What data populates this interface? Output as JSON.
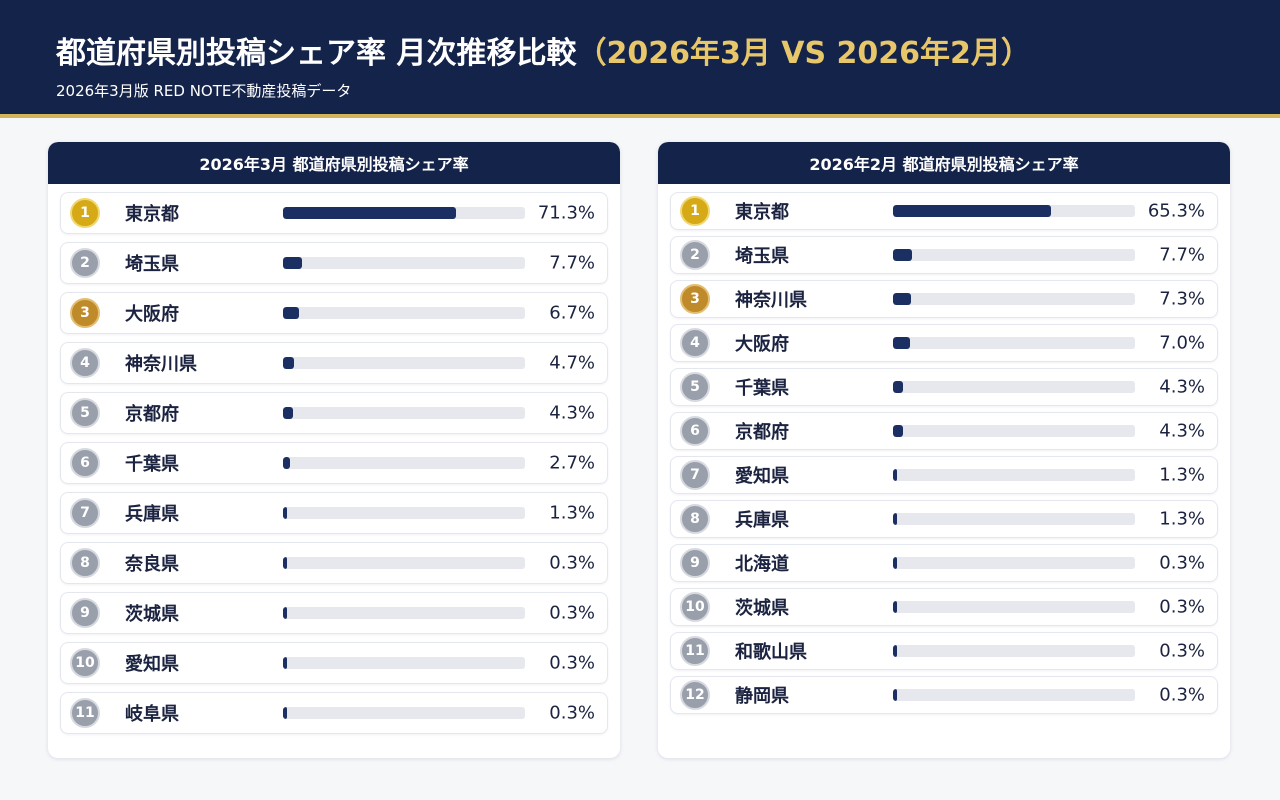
{
  "header": {
    "title_main": "都道府県別投稿シェア率 月次推移比較",
    "title_accent": "（2026年3月 VS 2026年2月）",
    "subtitle": "2026年3月版 RED NOTE不動産投稿データ"
  },
  "colors": {
    "header_bg": "#14234a",
    "accent_gold": "#d3b45a",
    "bar_fill": "#1c2f63",
    "bar_track": "#e6e8ee",
    "rank_gold": "#d6a916",
    "rank_silver": "#9aa0ab",
    "rank_bronze": "#bf8a2a"
  },
  "chart_data": [
    {
      "type": "bar",
      "title": "2026年3月 都道府県別投稿シェア率",
      "unit": "%",
      "xlim": [
        0,
        100
      ],
      "rows": [
        {
          "rank": "1",
          "medal": "gold",
          "name": "東京都",
          "value": 71.3,
          "label": "71.3%"
        },
        {
          "rank": "2",
          "medal": "silver",
          "name": "埼玉県",
          "value": 7.7,
          "label": "7.7%"
        },
        {
          "rank": "3",
          "medal": "bronze",
          "name": "大阪府",
          "value": 6.7,
          "label": "6.7%"
        },
        {
          "rank": "4",
          "medal": "none",
          "name": "神奈川県",
          "value": 4.7,
          "label": "4.7%"
        },
        {
          "rank": "5",
          "medal": "none",
          "name": "京都府",
          "value": 4.3,
          "label": "4.3%"
        },
        {
          "rank": "6",
          "medal": "none",
          "name": "千葉県",
          "value": 2.7,
          "label": "2.7%"
        },
        {
          "rank": "7",
          "medal": "none",
          "name": "兵庫県",
          "value": 1.3,
          "label": "1.3%"
        },
        {
          "rank": "8",
          "medal": "none",
          "name": "奈良県",
          "value": 0.3,
          "label": "0.3%"
        },
        {
          "rank": "9",
          "medal": "none",
          "name": "茨城県",
          "value": 0.3,
          "label": "0.3%"
        },
        {
          "rank": "10",
          "medal": "none",
          "name": "愛知県",
          "value": 0.3,
          "label": "0.3%"
        },
        {
          "rank": "11",
          "medal": "none",
          "name": "岐阜県",
          "value": 0.3,
          "label": "0.3%"
        }
      ]
    },
    {
      "type": "bar",
      "title": "2026年2月 都道府県別投稿シェア率",
      "unit": "%",
      "xlim": [
        0,
        100
      ],
      "rows": [
        {
          "rank": "1",
          "medal": "gold",
          "name": "東京都",
          "value": 65.3,
          "label": "65.3%"
        },
        {
          "rank": "2",
          "medal": "silver",
          "name": "埼玉県",
          "value": 7.7,
          "label": "7.7%"
        },
        {
          "rank": "3",
          "medal": "bronze",
          "name": "神奈川県",
          "value": 7.3,
          "label": "7.3%"
        },
        {
          "rank": "4",
          "medal": "none",
          "name": "大阪府",
          "value": 7.0,
          "label": "7.0%"
        },
        {
          "rank": "5",
          "medal": "none",
          "name": "千葉県",
          "value": 4.3,
          "label": "4.3%"
        },
        {
          "rank": "6",
          "medal": "none",
          "name": "京都府",
          "value": 4.3,
          "label": "4.3%"
        },
        {
          "rank": "7",
          "medal": "none",
          "name": "愛知県",
          "value": 1.3,
          "label": "1.3%"
        },
        {
          "rank": "8",
          "medal": "none",
          "name": "兵庫県",
          "value": 1.3,
          "label": "1.3%"
        },
        {
          "rank": "9",
          "medal": "none",
          "name": "北海道",
          "value": 0.3,
          "label": "0.3%"
        },
        {
          "rank": "10",
          "medal": "none",
          "name": "茨城県",
          "value": 0.3,
          "label": "0.3%"
        },
        {
          "rank": "11",
          "medal": "none",
          "name": "和歌山県",
          "value": 0.3,
          "label": "0.3%"
        },
        {
          "rank": "12",
          "medal": "none",
          "name": "静岡県",
          "value": 0.3,
          "label": "0.3%"
        }
      ]
    }
  ]
}
